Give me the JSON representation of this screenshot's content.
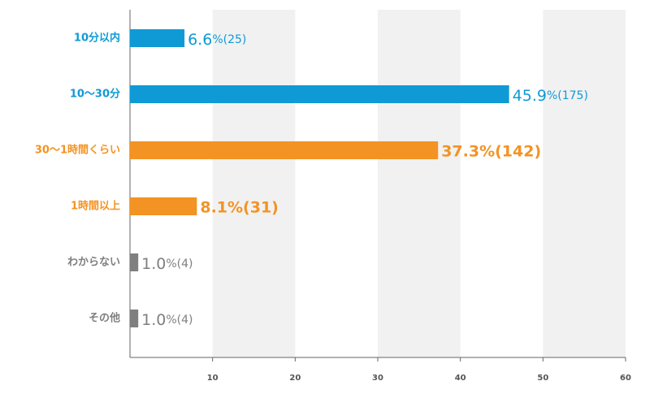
{
  "chart_data": {
    "type": "bar",
    "orientation": "horizontal",
    "categories": [
      "10分以内",
      "10〜30分",
      "30〜1時間くらい",
      "1時間以上",
      "わからない",
      "その他"
    ],
    "values": [
      6.6,
      45.9,
      37.3,
      8.1,
      1.0,
      1.0
    ],
    "value_labels": [
      "6.6%(25)",
      "45.9%(175)",
      "37.3%(142)",
      "8.1%(31)",
      "1.0%(4)",
      "1.0%(4)"
    ],
    "colors": [
      "#0f9ad6",
      "#0f9ad6",
      "#f39323",
      "#f39323",
      "#7f7f7f",
      "#7f7f7f"
    ],
    "xlim": [
      0,
      60
    ],
    "xticks": [
      10,
      20,
      30,
      40,
      50,
      60
    ],
    "grid": true
  }
}
